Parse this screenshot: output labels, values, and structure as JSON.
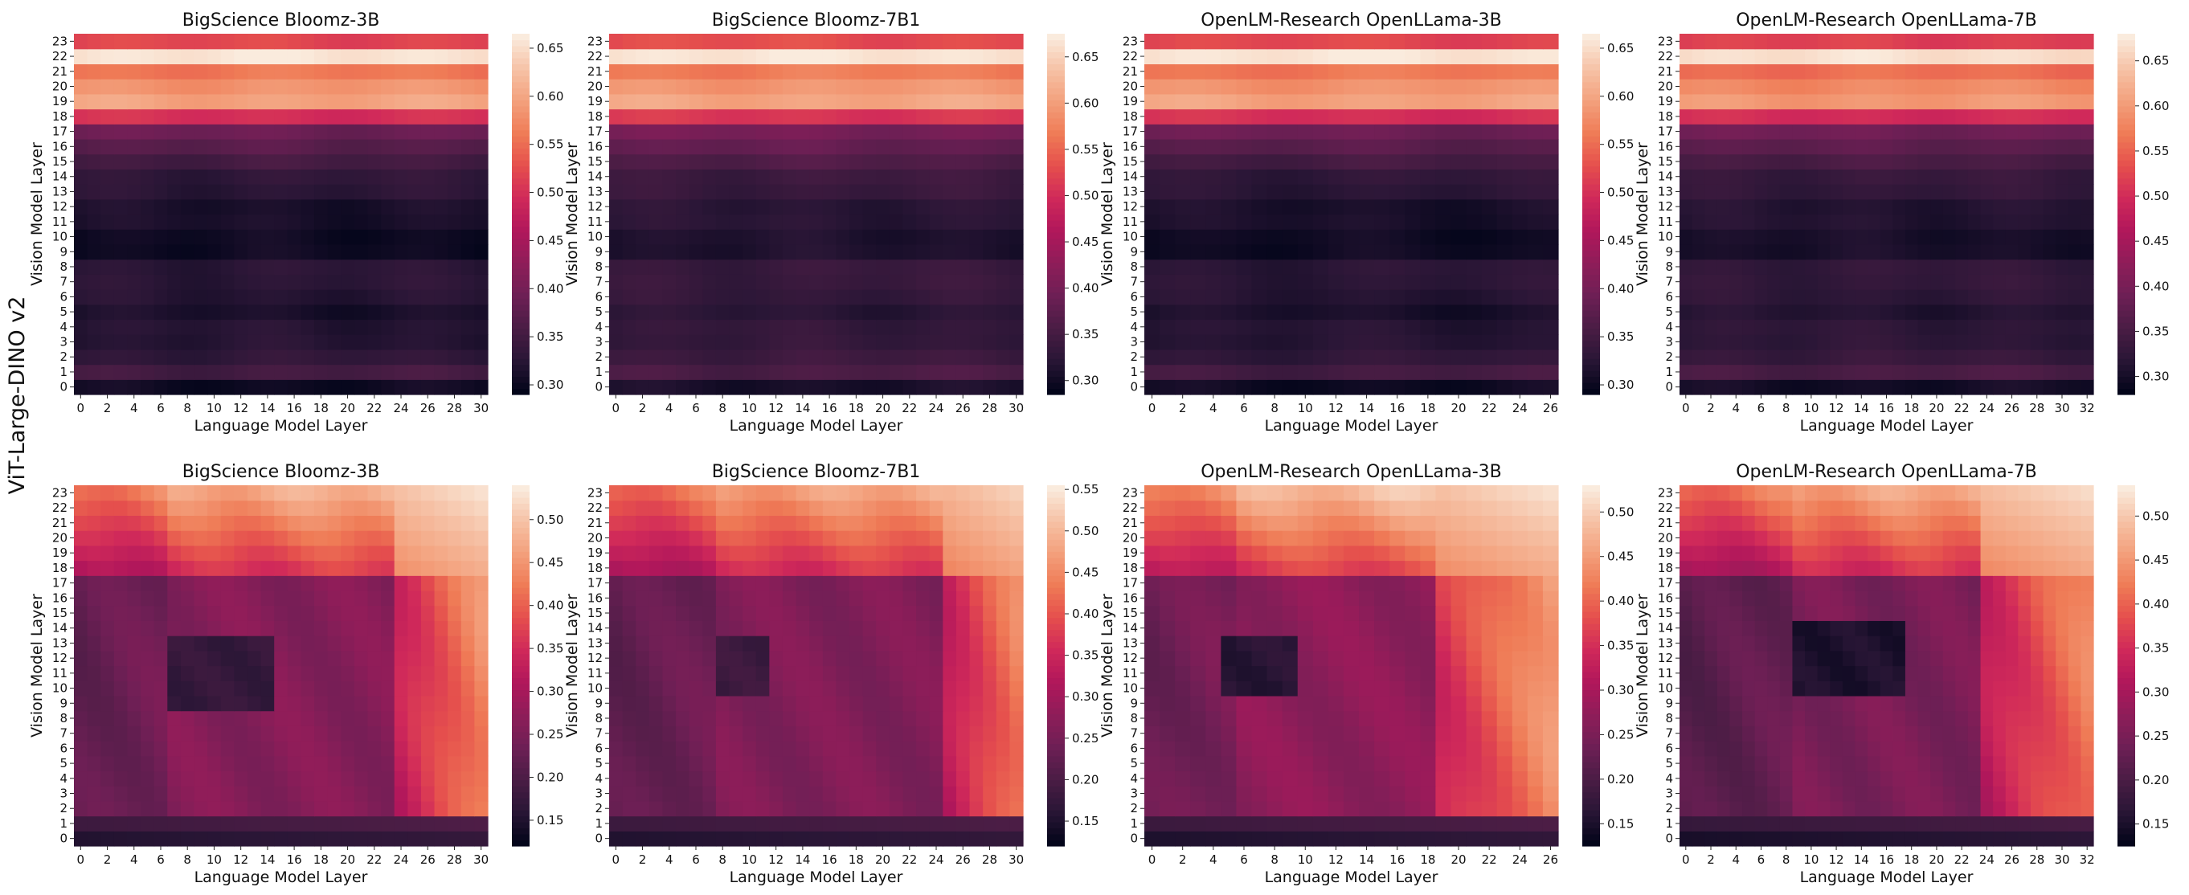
{
  "figure": {
    "row_label": "ViT-Large-DINO v2",
    "colormap": "rocket",
    "colormap_stops": [
      "#03051a",
      "#2a1636",
      "#4b1d45",
      "#6e1f55",
      "#8f1d59",
      "#b1175b",
      "#d0295a",
      "#e54f4d",
      "#ef7b56",
      "#f3a07c",
      "#f6c2a6",
      "#faebdd"
    ]
  },
  "chart_data": [
    {
      "type": "heatmap",
      "row": 0,
      "col": 0,
      "title": "BigScience Bloomz-3B",
      "xlabel": "Language Model Layer",
      "ylabel": "Vision Model Layer",
      "n_x": 31,
      "n_y": 24,
      "x_tick_step": 2,
      "x_ticks": [
        "0",
        "2",
        "4",
        "6",
        "8",
        "10",
        "12",
        "14",
        "16",
        "18",
        "20",
        "22",
        "24",
        "26",
        "28",
        "30"
      ],
      "y_ticks": [
        "0",
        "1",
        "2",
        "3",
        "4",
        "5",
        "6",
        "7",
        "8",
        "9",
        "10",
        "11",
        "12",
        "13",
        "14",
        "15",
        "16",
        "17",
        "18",
        "19",
        "20",
        "21",
        "22",
        "23"
      ],
      "vmin": 0.29,
      "vmax": 0.665,
      "colorbar_ticks": [
        "0.30",
        "0.35",
        "0.40",
        "0.45",
        "0.50",
        "0.55",
        "0.60",
        "0.65"
      ],
      "pattern": "rows",
      "row_values": [
        0.3,
        0.35,
        0.33,
        0.32,
        0.32,
        0.31,
        0.32,
        0.325,
        0.325,
        0.3,
        0.3,
        0.31,
        0.31,
        0.325,
        0.33,
        0.35,
        0.37,
        0.39,
        0.5,
        0.6,
        0.585,
        0.56,
        0.66,
        0.52
      ]
    },
    {
      "type": "heatmap",
      "row": 0,
      "col": 1,
      "title": "BigScience Bloomz-7B1",
      "xlabel": "Language Model Layer",
      "ylabel": "Vision Model Layer",
      "n_x": 31,
      "n_y": 24,
      "x_tick_step": 2,
      "x_ticks": [
        "0",
        "2",
        "4",
        "6",
        "8",
        "10",
        "12",
        "14",
        "16",
        "18",
        "20",
        "22",
        "24",
        "26",
        "28",
        "30"
      ],
      "y_ticks": [
        "0",
        "1",
        "2",
        "3",
        "4",
        "5",
        "6",
        "7",
        "8",
        "9",
        "10",
        "11",
        "12",
        "13",
        "14",
        "15",
        "16",
        "17",
        "18",
        "19",
        "20",
        "21",
        "22",
        "23"
      ],
      "vmin": 0.285,
      "vmax": 0.675,
      "colorbar_ticks": [
        "0.30",
        "0.35",
        "0.40",
        "0.45",
        "0.50",
        "0.55",
        "0.60",
        "0.65"
      ],
      "pattern": "rows",
      "row_values": [
        0.305,
        0.355,
        0.34,
        0.33,
        0.33,
        0.32,
        0.33,
        0.335,
        0.335,
        0.31,
        0.31,
        0.32,
        0.32,
        0.335,
        0.34,
        0.36,
        0.38,
        0.4,
        0.51,
        0.61,
        0.595,
        0.57,
        0.67,
        0.53
      ]
    },
    {
      "type": "heatmap",
      "row": 0,
      "col": 2,
      "title": "OpenLM-Research OpenLLama-3B",
      "xlabel": "Language Model Layer",
      "ylabel": "Vision Model Layer",
      "n_x": 27,
      "n_y": 24,
      "x_tick_step": 2,
      "x_ticks": [
        "0",
        "2",
        "4",
        "6",
        "8",
        "10",
        "12",
        "14",
        "16",
        "18",
        "20",
        "22",
        "24",
        "26"
      ],
      "y_ticks": [
        "0",
        "1",
        "2",
        "3",
        "4",
        "5",
        "6",
        "7",
        "8",
        "9",
        "10",
        "11",
        "12",
        "13",
        "14",
        "15",
        "16",
        "17",
        "18",
        "19",
        "20",
        "21",
        "22",
        "23"
      ],
      "vmin": 0.29,
      "vmax": 0.665,
      "colorbar_ticks": [
        "0.30",
        "0.35",
        "0.40",
        "0.45",
        "0.50",
        "0.55",
        "0.60",
        "0.65"
      ],
      "pattern": "rows",
      "row_values": [
        0.3,
        0.35,
        0.33,
        0.32,
        0.32,
        0.31,
        0.32,
        0.325,
        0.325,
        0.3,
        0.3,
        0.31,
        0.31,
        0.325,
        0.33,
        0.35,
        0.37,
        0.39,
        0.5,
        0.6,
        0.585,
        0.56,
        0.66,
        0.52
      ]
    },
    {
      "type": "heatmap",
      "row": 0,
      "col": 3,
      "title": "OpenLM-Research OpenLLama-7B",
      "xlabel": "Language Model Layer",
      "ylabel": "Vision Model Layer",
      "n_x": 33,
      "n_y": 24,
      "x_tick_step": 2,
      "x_ticks": [
        "0",
        "2",
        "4",
        "6",
        "8",
        "10",
        "12",
        "14",
        "16",
        "18",
        "20",
        "22",
        "24",
        "26",
        "28",
        "30",
        "32"
      ],
      "y_ticks": [
        "0",
        "1",
        "2",
        "3",
        "4",
        "5",
        "6",
        "7",
        "8",
        "9",
        "10",
        "11",
        "12",
        "13",
        "14",
        "15",
        "16",
        "17",
        "18",
        "19",
        "20",
        "21",
        "22",
        "23"
      ],
      "vmin": 0.28,
      "vmax": 0.68,
      "colorbar_ticks": [
        "0.30",
        "0.35",
        "0.40",
        "0.45",
        "0.50",
        "0.55",
        "0.60",
        "0.65"
      ],
      "pattern": "rows",
      "row_values": [
        0.295,
        0.35,
        0.33,
        0.32,
        0.32,
        0.31,
        0.32,
        0.325,
        0.325,
        0.3,
        0.3,
        0.31,
        0.31,
        0.325,
        0.33,
        0.35,
        0.37,
        0.39,
        0.5,
        0.6,
        0.585,
        0.56,
        0.67,
        0.52
      ]
    },
    {
      "type": "heatmap",
      "row": 1,
      "col": 0,
      "title": "BigScience Bloomz-3B",
      "xlabel": "Language Model Layer",
      "ylabel": "Vision Model Layer",
      "n_x": 31,
      "n_y": 24,
      "x_tick_step": 2,
      "x_ticks": [
        "0",
        "2",
        "4",
        "6",
        "8",
        "10",
        "12",
        "14",
        "16",
        "18",
        "20",
        "22",
        "24",
        "26",
        "28",
        "30"
      ],
      "y_ticks": [
        "0",
        "1",
        "2",
        "3",
        "4",
        "5",
        "6",
        "7",
        "8",
        "9",
        "10",
        "11",
        "12",
        "13",
        "14",
        "15",
        "16",
        "17",
        "18",
        "19",
        "20",
        "21",
        "22",
        "23"
      ],
      "vmin": 0.12,
      "vmax": 0.54,
      "colorbar_ticks": [
        "0.15",
        "0.20",
        "0.25",
        "0.30",
        "0.35",
        "0.40",
        "0.45",
        "0.50"
      ],
      "pattern": "corner",
      "corner": {
        "jump": 6.5,
        "dark_box_x": [
          7,
          14
        ],
        "dark_box_y": [
          9,
          13
        ],
        "right_x": 24,
        "top_y": 18,
        "base": 0.22,
        "peak": 0.53,
        "box": 0.17,
        "bottom_row": 0.15
      }
    },
    {
      "type": "heatmap",
      "row": 1,
      "col": 1,
      "title": "BigScience Bloomz-7B1",
      "xlabel": "Language Model Layer",
      "ylabel": "Vision Model Layer",
      "n_x": 31,
      "n_y": 24,
      "x_tick_step": 2,
      "x_ticks": [
        "0",
        "2",
        "4",
        "6",
        "8",
        "10",
        "12",
        "14",
        "16",
        "18",
        "20",
        "22",
        "24",
        "26",
        "28",
        "30"
      ],
      "y_ticks": [
        "0",
        "1",
        "2",
        "3",
        "4",
        "5",
        "6",
        "7",
        "8",
        "9",
        "10",
        "11",
        "12",
        "13",
        "14",
        "15",
        "16",
        "17",
        "18",
        "19",
        "20",
        "21",
        "22",
        "23"
      ],
      "vmin": 0.12,
      "vmax": 0.555,
      "colorbar_ticks": [
        "0.15",
        "0.20",
        "0.25",
        "0.30",
        "0.35",
        "0.40",
        "0.45",
        "0.50",
        "0.55"
      ],
      "pattern": "corner",
      "corner": {
        "jump": 7.5,
        "dark_box_x": [
          8,
          11
        ],
        "dark_box_y": [
          10,
          13
        ],
        "right_x": 25,
        "top_y": 18,
        "base": 0.22,
        "peak": 0.53,
        "box": 0.18,
        "bottom_row": 0.15
      }
    },
    {
      "type": "heatmap",
      "row": 1,
      "col": 2,
      "title": "OpenLM-Research OpenLLama-3B",
      "xlabel": "Language Model Layer",
      "ylabel": "Vision Model Layer",
      "n_x": 27,
      "n_y": 24,
      "x_tick_step": 2,
      "x_ticks": [
        "0",
        "2",
        "4",
        "6",
        "8",
        "10",
        "12",
        "14",
        "16",
        "18",
        "20",
        "22",
        "24",
        "26"
      ],
      "y_ticks": [
        "0",
        "1",
        "2",
        "3",
        "4",
        "5",
        "6",
        "7",
        "8",
        "9",
        "10",
        "11",
        "12",
        "13",
        "14",
        "15",
        "16",
        "17",
        "18",
        "19",
        "20",
        "21",
        "22",
        "23"
      ],
      "vmin": 0.125,
      "vmax": 0.53,
      "colorbar_ticks": [
        "0.15",
        "0.20",
        "0.25",
        "0.30",
        "0.35",
        "0.40",
        "0.45",
        "0.50"
      ],
      "pattern": "corner",
      "corner": {
        "jump": 5.5,
        "dark_box_x": [
          5,
          9
        ],
        "dark_box_y": [
          10,
          13
        ],
        "right_x": 19,
        "top_y": 18,
        "base": 0.23,
        "peak": 0.52,
        "box": 0.16,
        "bottom_row": 0.15
      }
    },
    {
      "type": "heatmap",
      "row": 1,
      "col": 3,
      "title": "OpenLM-Research OpenLLama-7B",
      "xlabel": "Language Model Layer",
      "ylabel": "Vision Model Layer",
      "n_x": 33,
      "n_y": 24,
      "x_tick_step": 2,
      "x_ticks": [
        "0",
        "2",
        "4",
        "6",
        "8",
        "10",
        "12",
        "14",
        "16",
        "18",
        "20",
        "22",
        "24",
        "26",
        "28",
        "30",
        "32"
      ],
      "y_ticks": [
        "0",
        "1",
        "2",
        "3",
        "4",
        "5",
        "6",
        "7",
        "8",
        "9",
        "10",
        "11",
        "12",
        "13",
        "14",
        "15",
        "16",
        "17",
        "18",
        "19",
        "20",
        "21",
        "22",
        "23"
      ],
      "vmin": 0.125,
      "vmax": 0.535,
      "colorbar_ticks": [
        "0.15",
        "0.20",
        "0.25",
        "0.30",
        "0.35",
        "0.40",
        "0.45",
        "0.50"
      ],
      "pattern": "corner",
      "corner": {
        "jump": 8.5,
        "dark_box_x": [
          9,
          17
        ],
        "dark_box_y": [
          10,
          14
        ],
        "right_x": 24,
        "top_y": 18,
        "base": 0.21,
        "peak": 0.52,
        "box": 0.15,
        "bottom_row": 0.145
      }
    }
  ]
}
